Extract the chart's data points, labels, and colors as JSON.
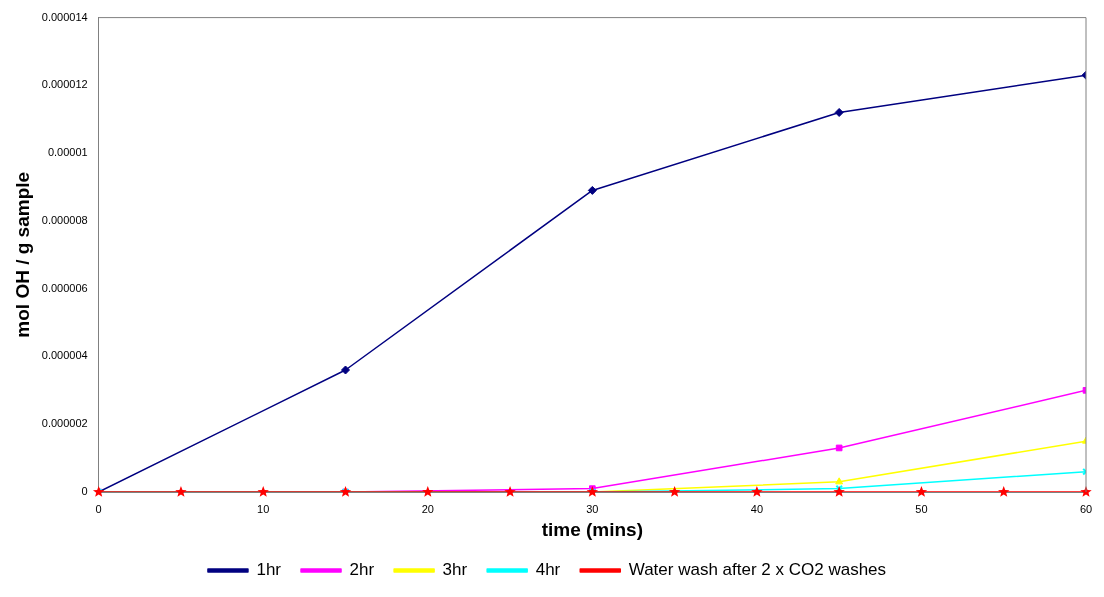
{
  "chart_data": {
    "type": "line",
    "xlabel": "time (mins)",
    "ylabel": "mol OH / g sample",
    "xlim": [
      0,
      60
    ],
    "xticks": [
      0,
      10,
      20,
      30,
      40,
      50,
      60
    ],
    "ylim": [
      0,
      1.4e-05
    ],
    "yticks": [
      0,
      {
        "value": 2e-06,
        "label": "0.000002"
      },
      {
        "value": 4e-06,
        "label": "0.000004"
      },
      {
        "value": 6e-06,
        "label": "0.000006"
      },
      {
        "value": 8e-06,
        "label": "0.000008"
      },
      {
        "value": 1e-05,
        "label": "0.00001"
      },
      {
        "value": 1.2e-05,
        "label": "0.000012"
      },
      {
        "value": 1.4e-05,
        "label": "0.000014"
      }
    ],
    "grid": false,
    "legend": "bottom",
    "line_style": "solid",
    "series": [
      {
        "name": "1hr",
        "color": "#000080",
        "marker": "diamond",
        "x": [
          0,
          15,
          30,
          45,
          60
        ],
        "values": [
          0,
          3.6e-06,
          8.9e-06,
          1.12e-05,
          1.23e-05
        ]
      },
      {
        "name": "2hr",
        "color": "#ff00ff",
        "marker": "square",
        "x": [
          0,
          15,
          30,
          45,
          60
        ],
        "values": [
          0,
          0,
          1e-07,
          1.3e-06,
          3e-06
        ]
      },
      {
        "name": "3hr",
        "color": "#ffff00",
        "marker": "triangle",
        "x": [
          0,
          15,
          30,
          45,
          60
        ],
        "values": [
          0,
          0,
          0,
          3e-07,
          1.5e-06
        ]
      },
      {
        "name": "4hr",
        "color": "#00ffff",
        "marker": "cross",
        "x": [
          0,
          15,
          30,
          45,
          60
        ],
        "values": [
          0,
          0,
          0,
          1e-07,
          6e-07
        ]
      },
      {
        "name": "Water wash after 2 x CO2 washes",
        "color": "#ff0000",
        "marker": "star",
        "x": [
          0,
          5,
          10,
          15,
          20,
          25,
          30,
          35,
          40,
          45,
          50,
          55,
          60
        ],
        "values": [
          0,
          0,
          0,
          0,
          0,
          0,
          0,
          0,
          0,
          0,
          0,
          0,
          0
        ]
      }
    ]
  }
}
